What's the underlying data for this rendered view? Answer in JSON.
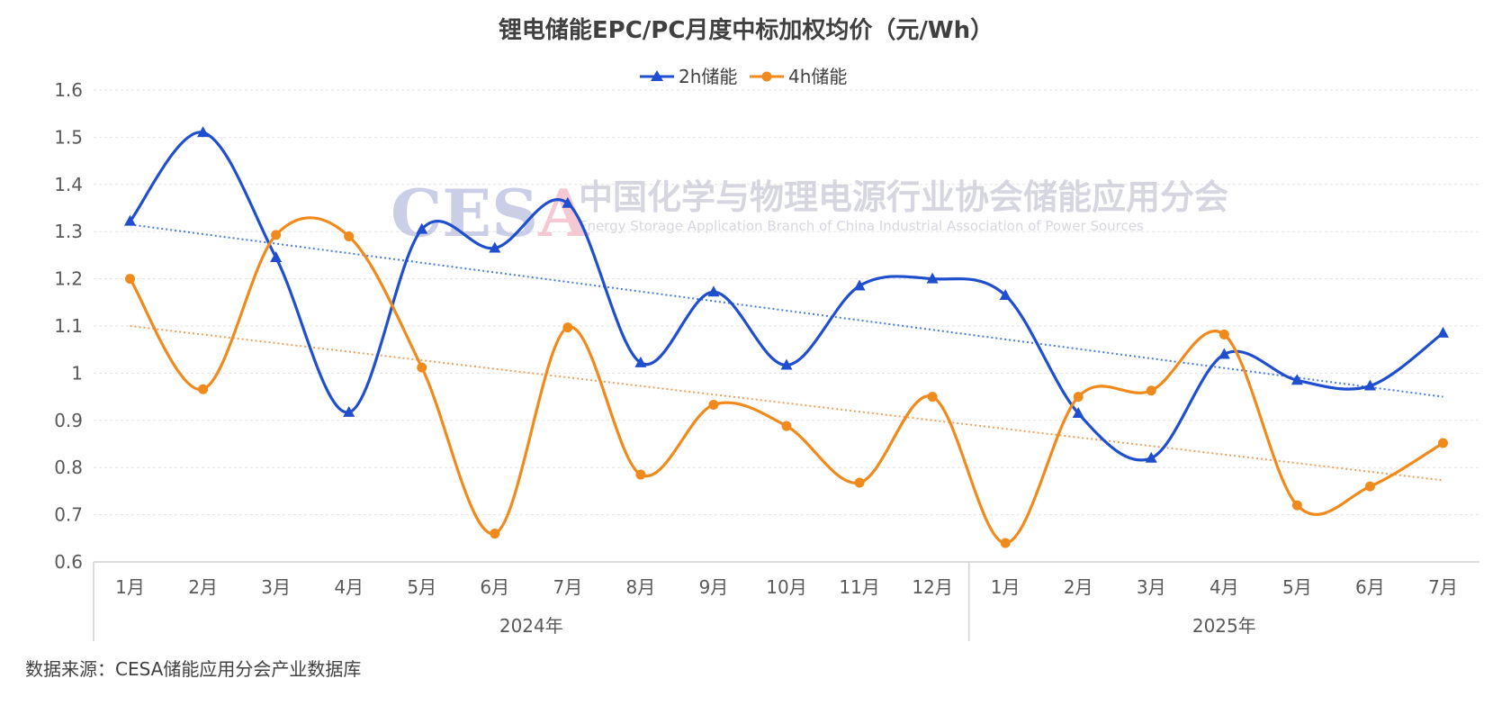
{
  "chart_data": {
    "type": "line",
    "title": "锂电储能EPC/PC月度中标加权均价（元/Wh）",
    "categories": [
      "1月",
      "2月",
      "3月",
      "4月",
      "5月",
      "6月",
      "7月",
      "8月",
      "9月",
      "10月",
      "11月",
      "12月",
      "1月",
      "2月",
      "3月",
      "4月",
      "5月",
      "6月",
      "7月"
    ],
    "groups": [
      {
        "label": "2024年",
        "count": 12
      },
      {
        "label": "2025年",
        "count": 7
      }
    ],
    "yticks": [
      "1.6",
      "1.5",
      "1.4",
      "1.3",
      "1.2",
      "1.1",
      "1",
      "0.9",
      "0.8",
      "0.7",
      "0.6"
    ],
    "ylim": [
      0.6,
      1.6
    ],
    "grid": true,
    "legend_position": "top",
    "series": [
      {
        "name": "2h储能",
        "color": "#1f4fcf",
        "marker": "triangle",
        "values": [
          1.322,
          1.51,
          1.245,
          0.917,
          1.305,
          1.265,
          1.36,
          1.022,
          1.172,
          1.017,
          1.185,
          1.2,
          1.165,
          0.915,
          0.82,
          1.04,
          0.985,
          0.973,
          1.085
        ]
      },
      {
        "name": "4h储能",
        "color": "#f08a1c",
        "marker": "circle",
        "values": [
          1.2,
          0.966,
          1.293,
          1.29,
          1.012,
          0.66,
          1.097,
          0.785,
          0.933,
          0.888,
          0.768,
          0.95,
          0.64,
          0.95,
          0.963,
          1.082,
          0.72,
          0.76,
          0.852
        ]
      }
    ],
    "trendlines": [
      {
        "series": "2h储能",
        "color": "#4a7be0",
        "start": 1.315,
        "end": 0.95
      },
      {
        "series": "4h储能",
        "color": "#f0a05a",
        "start": 1.1,
        "end": 0.773
      }
    ]
  },
  "watermark": {
    "logo": "CESA",
    "cn": "中国化学与物理电源行业协会储能应用分会",
    "en": "Energy Storage Application Branch of China Industrial Association of Power Sources"
  },
  "source": "数据来源：CESA储能应用分会产业数据库"
}
